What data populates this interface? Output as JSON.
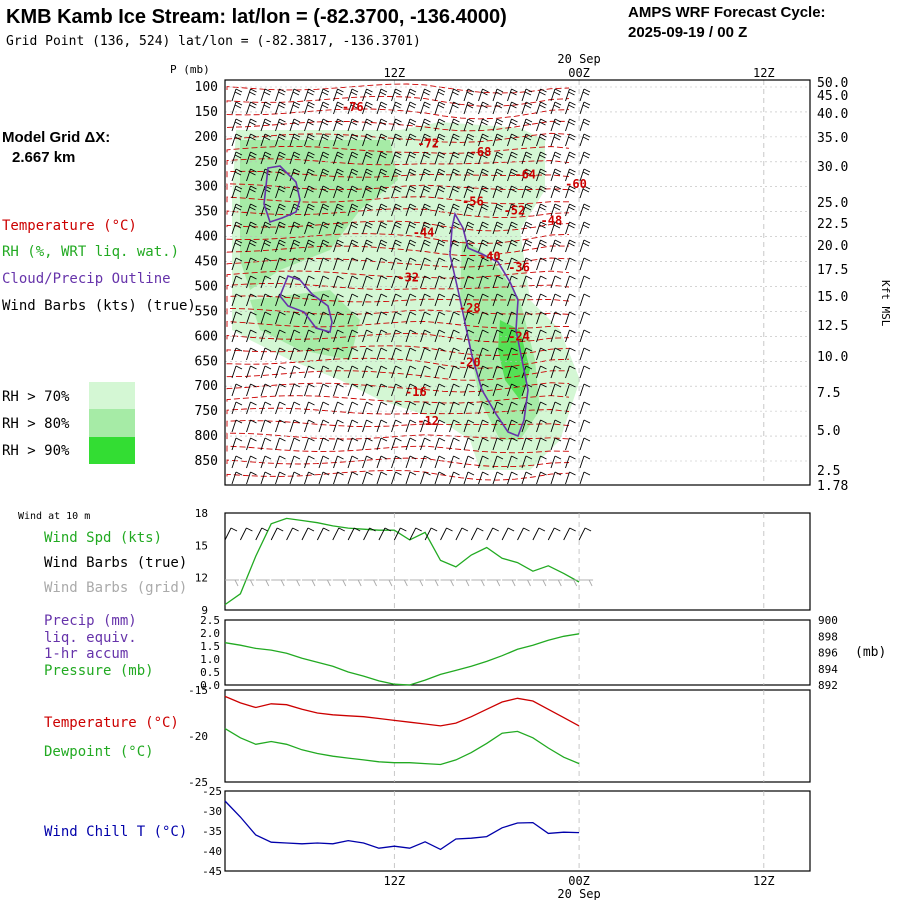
{
  "header": {
    "title": "KMB Kamb Ice Stream:  lat/lon = (-82.3700, -136.4000)",
    "subtitle": "Grid Point (136, 524) lat/lon = (-82.3817, -136.3701)",
    "forecast_cycle_label": "AMPS WRF Forecast Cycle:",
    "forecast_cycle_value": "2025-09-19 / 00  Z",
    "model_grid_label": "Model Grid ΔX:",
    "model_grid_value": "2.667 km"
  },
  "colors": {
    "temperature": "#cc0000",
    "rh": "#22aa22",
    "cloud": "#6633aa",
    "wind": "#000000",
    "wind_grid": "#aaaaaa",
    "rh70": "#d4f7d4",
    "rh80": "#a6eba6",
    "rh90": "#33dd33",
    "wind_chill": "#0000aa",
    "grid": "#bbbbbb"
  },
  "time_axis": {
    "ticks": [
      {
        "h": 12,
        "label": "12Z"
      },
      {
        "h": 24,
        "label": "00Z",
        "date": "20 Sep"
      },
      {
        "h": 36,
        "label": "12Z"
      }
    ],
    "range_hours": [
      1,
      39
    ]
  },
  "legend_top": {
    "temperature": "Temperature (°C)",
    "rh": "RH (%, WRT liq. wat.)",
    "cloud": "Cloud/Precip Outline",
    "wind": "Wind Barbs (kts) (true)",
    "rh70": "RH > 70%",
    "rh80": "RH > 80%",
    "rh90": "RH > 90%"
  },
  "legend_wind": {
    "header": "Wind at 10 m",
    "speed": "Wind Spd (kts)",
    "barbs_true": "Wind Barbs (true)",
    "barbs_grid": "Wind Barbs (grid)"
  },
  "legend_precip": {
    "precip": "Precip (mm)",
    "liq": "liq. equiv.",
    "accum": "1-hr accum",
    "pressure": "Pressure (mb)",
    "units_right": "(mb)"
  },
  "legend_temp": {
    "temperature": "Temperature (°C)",
    "dewpoint": "Dewpoint (°C)"
  },
  "legend_chill": {
    "wind_chill": "Wind Chill T (°C)"
  },
  "chart_data": [
    {
      "type": "heatmap",
      "panel": "profile",
      "ylabel": "P (mb)",
      "ylabel_right": "Kft MSL",
      "pressure_ticks": [
        "100",
        "150",
        "200",
        "250",
        "300",
        "350",
        "400",
        "450",
        "500",
        "550",
        "600",
        "650",
        "700",
        "750",
        "800",
        "850"
      ],
      "height_ticks": [
        "50.0",
        "45.0",
        "40.0",
        "35.0",
        "30.0",
        "25.0",
        "22.5",
        "20.0",
        "17.5",
        "15.0",
        "12.5",
        "10.0",
        "7.5",
        "5.0",
        "2.5",
        "1.78"
      ],
      "temperature_labels": [
        {
          "text": "-76",
          "h": 9.3,
          "p": 140
        },
        {
          "text": "-72",
          "h": 14.2,
          "p": 213
        },
        {
          "text": "-68",
          "h": 17.6,
          "p": 230
        },
        {
          "text": "-64",
          "h": 20.5,
          "p": 275
        },
        {
          "text": "-60",
          "h": 23.8,
          "p": 295
        },
        {
          "text": "-56",
          "h": 17.1,
          "p": 330
        },
        {
          "text": "-52",
          "h": 19.8,
          "p": 348
        },
        {
          "text": "-48",
          "h": 22.2,
          "p": 368
        },
        {
          "text": "-44",
          "h": 13.9,
          "p": 392
        },
        {
          "text": "-40",
          "h": 18.2,
          "p": 440
        },
        {
          "text": "-36",
          "h": 20.1,
          "p": 462
        },
        {
          "text": "-32",
          "h": 12.9,
          "p": 482
        },
        {
          "text": "-28",
          "h": 16.9,
          "p": 543
        },
        {
          "text": "-24",
          "h": 20.1,
          "p": 600
        },
        {
          "text": "-20",
          "h": 16.9,
          "p": 652
        },
        {
          "text": "-16",
          "h": 13.4,
          "p": 712
        },
        {
          "text": "-12",
          "h": 14.2,
          "p": 770
        }
      ]
    },
    {
      "type": "line",
      "panel": "wind10m",
      "ylim": [
        9,
        18
      ],
      "yticks": [
        "9",
        "12",
        "15",
        "18"
      ],
      "series": [
        {
          "name": "Wind Spd (kts)",
          "x": [
            1,
            2,
            3,
            4,
            5,
            6,
            7,
            8,
            9,
            10,
            11,
            12,
            13,
            14,
            15,
            16,
            17,
            18,
            19,
            20,
            21,
            22,
            23,
            24
          ],
          "values": [
            9.5,
            10.5,
            14,
            17,
            17.5,
            17.3,
            17.1,
            16.8,
            16.6,
            16.5,
            16.4,
            16.4,
            15.5,
            16.2,
            13.6,
            13.0,
            14.1,
            14.8,
            13.8,
            13.4,
            12.6,
            13.1,
            12.4,
            11.6
          ]
        }
      ]
    },
    {
      "type": "line",
      "panel": "precip_pressure",
      "ylim": [
        0,
        2.5
      ],
      "yticks": [
        "0.0",
        "0.5",
        "1.0",
        "1.5",
        "2.0",
        "2.5"
      ],
      "y2lim": [
        892,
        900
      ],
      "y2ticks": [
        "892",
        "894",
        "896",
        "898",
        "900"
      ],
      "series": [
        {
          "name": "Pressure (mb)",
          "x": [
            1,
            2,
            3,
            4,
            5,
            6,
            7,
            8,
            9,
            10,
            11,
            12,
            13,
            14,
            15,
            16,
            17,
            18,
            19,
            20,
            21,
            22,
            23,
            24
          ],
          "values": [
            897.2,
            896.9,
            896.5,
            896.3,
            895.9,
            895.3,
            894.8,
            894.3,
            893.6,
            893.1,
            892.5,
            892.1,
            892.0,
            892.6,
            893.3,
            893.8,
            894.3,
            894.9,
            895.6,
            896.4,
            896.9,
            897.5,
            898.0,
            898.3
          ]
        }
      ]
    },
    {
      "type": "line",
      "panel": "temperature",
      "ylim": [
        -25,
        -15
      ],
      "yticks": [
        "-25",
        "-20",
        "-15"
      ],
      "series": [
        {
          "name": "Temperature (°C)",
          "x": [
            1,
            2,
            3,
            4,
            5,
            6,
            7,
            8,
            9,
            10,
            11,
            12,
            13,
            14,
            15,
            16,
            17,
            18,
            19,
            20,
            21,
            22,
            23,
            24
          ],
          "values": [
            -15.7,
            -16.4,
            -16.9,
            -16.5,
            -16.6,
            -17.1,
            -17.5,
            -17.7,
            -17.8,
            -17.9,
            -18.1,
            -18.3,
            -18.5,
            -18.7,
            -18.9,
            -18.6,
            -17.9,
            -17.1,
            -16.3,
            -15.9,
            -16.2,
            -17.1,
            -18.0,
            -18.9
          ]
        },
        {
          "name": "Dewpoint (°C)",
          "x": [
            1,
            2,
            3,
            4,
            5,
            6,
            7,
            8,
            9,
            10,
            11,
            12,
            13,
            14,
            15,
            16,
            17,
            18,
            19,
            20,
            21,
            22,
            23,
            24
          ],
          "values": [
            -19.2,
            -20.2,
            -20.9,
            -20.6,
            -20.9,
            -21.5,
            -21.9,
            -22.2,
            -22.4,
            -22.6,
            -22.8,
            -22.9,
            -22.9,
            -23.0,
            -23.1,
            -22.6,
            -21.8,
            -20.8,
            -19.7,
            -19.5,
            -20.2,
            -21.3,
            -22.3,
            -23.0
          ]
        }
      ]
    },
    {
      "type": "line",
      "panel": "wind_chill",
      "ylim": [
        -45,
        -25
      ],
      "yticks": [
        "-45",
        "-40",
        "-35",
        "-30",
        "-25"
      ],
      "series": [
        {
          "name": "Wind Chill T (°C)",
          "x": [
            1,
            2,
            3,
            4,
            5,
            6,
            7,
            8,
            9,
            10,
            11,
            12,
            13,
            14,
            15,
            16,
            17,
            18,
            19,
            20,
            21,
            22,
            23,
            24
          ],
          "values": [
            -27.5,
            -31.5,
            -36.0,
            -37.8,
            -38.0,
            -38.2,
            -38.0,
            -38.2,
            -37.4,
            -38.0,
            -39.3,
            -38.8,
            -39.3,
            -37.7,
            -39.6,
            -37.0,
            -36.8,
            -36.4,
            -34.2,
            -33.0,
            -32.9,
            -35.6,
            -35.3,
            -35.4
          ]
        }
      ]
    }
  ]
}
